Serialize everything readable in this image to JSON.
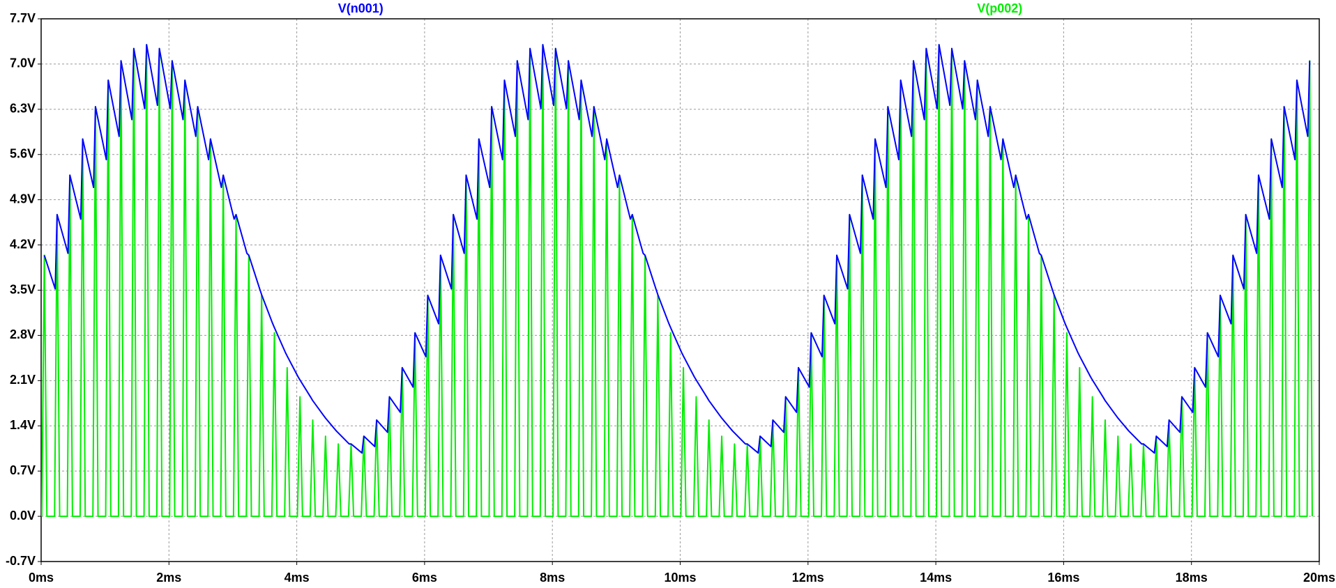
{
  "chart_data": {
    "type": "line",
    "xlim": [
      0,
      20
    ],
    "ylim": [
      -0.7,
      7.7
    ],
    "grid": true,
    "xticks": [
      {
        "value": 0,
        "label": "0ms"
      },
      {
        "value": 2,
        "label": "2ms"
      },
      {
        "value": 4,
        "label": "4ms"
      },
      {
        "value": 6,
        "label": "6ms"
      },
      {
        "value": 8,
        "label": "8ms"
      },
      {
        "value": 10,
        "label": "10ms"
      },
      {
        "value": 12,
        "label": "12ms"
      },
      {
        "value": 14,
        "label": "14ms"
      },
      {
        "value": 16,
        "label": "16ms"
      },
      {
        "value": 18,
        "label": "18ms"
      },
      {
        "value": 20,
        "label": "20ms"
      }
    ],
    "yticks": [
      {
        "value": -0.7,
        "label": "-0.7V"
      },
      {
        "value": 0,
        "label": "0.0V"
      },
      {
        "value": 0.7,
        "label": "0.7V"
      },
      {
        "value": 1.4,
        "label": "1.4V"
      },
      {
        "value": 2.1,
        "label": "2.1V"
      },
      {
        "value": 2.8,
        "label": "2.8V"
      },
      {
        "value": 3.5,
        "label": "3.5V"
      },
      {
        "value": 4.2,
        "label": "4.2V"
      },
      {
        "value": 4.9,
        "label": "4.9V"
      },
      {
        "value": 5.6,
        "label": "5.6V"
      },
      {
        "value": 6.3,
        "label": "6.3V"
      },
      {
        "value": 7,
        "label": "7.0V"
      },
      {
        "value": 7.7,
        "label": "7.7V"
      }
    ],
    "series": [
      {
        "name": "V(n001)",
        "color": "#0000ff",
        "x": [
          0.05,
          0.22,
          0.25,
          0.42,
          0.45,
          0.62,
          0.65,
          0.82,
          0.85,
          1.02,
          1.05,
          1.22,
          1.25,
          1.42,
          1.45,
          1.62,
          1.65,
          1.82,
          1.85,
          2.02,
          2.05,
          2.22,
          2.25,
          2.42,
          2.45,
          2.62,
          2.65,
          2.82,
          2.85,
          3.02,
          3.05,
          3.22,
          3.25,
          3.42,
          3.45,
          3.62,
          3.65,
          3.82,
          3.85,
          4.02,
          4.05,
          4.22,
          4.25,
          4.42,
          4.45,
          4.62,
          4.65,
          4.82,
          4.85,
          5.02,
          5.05,
          5.22,
          5.25,
          5.42,
          5.45,
          5.62,
          5.65,
          5.82,
          5.85,
          6.02,
          6.05,
          6.22,
          6.25,
          6.42,
          6.45,
          6.62,
          6.65,
          6.82,
          6.85,
          7.02,
          7.05,
          7.22,
          7.25,
          7.42,
          7.45,
          7.62,
          7.65,
          7.82,
          7.85,
          8.02,
          8.05,
          8.22,
          8.25,
          8.42,
          8.45,
          8.62,
          8.65,
          8.82,
          8.85,
          9.02,
          9.05,
          9.22,
          9.25,
          9.42,
          9.45,
          9.62,
          9.65,
          9.82,
          9.85,
          10.02,
          10.05,
          10.22,
          10.25,
          10.42,
          10.45,
          10.62,
          10.65,
          10.82,
          10.85,
          11.02,
          11.05,
          11.22,
          11.25,
          11.42,
          11.45,
          11.62,
          11.65,
          11.82,
          11.85,
          12.02,
          12.05,
          12.22,
          12.25,
          12.42,
          12.45,
          12.62,
          12.65,
          12.82,
          12.85,
          13.02,
          13.05,
          13.22,
          13.25,
          13.42,
          13.45,
          13.62,
          13.65,
          13.82,
          13.85,
          14.02,
          14.05,
          14.22,
          14.25,
          14.42,
          14.45,
          14.62,
          14.65,
          14.82,
          14.85,
          15.02,
          15.05,
          15.22,
          15.25,
          15.42,
          15.45,
          15.62,
          15.65,
          15.82,
          15.85,
          16.02,
          16.05,
          16.22,
          16.25,
          16.42,
          16.45,
          16.62,
          16.65,
          16.82,
          16.85,
          17.02,
          17.05,
          17.22,
          17.25,
          17.42,
          17.45,
          17.62,
          17.65,
          17.82,
          17.85,
          18.02,
          18.05,
          18.22,
          18.25,
          18.42,
          18.45,
          18.62,
          18.65,
          18.82,
          18.85,
          19.02,
          19.05,
          19.22,
          19.25,
          19.42,
          19.45,
          19.62,
          19.65,
          19.82,
          19.85
        ],
        "values": [
          4.04,
          3.52,
          4.67,
          4.07,
          5.28,
          4.6,
          5.84,
          5.09,
          6.34,
          5.52,
          6.75,
          5.88,
          7.05,
          6.14,
          7.24,
          6.31,
          7.3,
          6.36,
          7.24,
          6.31,
          7.05,
          6.14,
          6.75,
          5.88,
          6.34,
          5.52,
          5.84,
          5.09,
          5.28,
          4.6,
          4.67,
          4.07,
          4.04,
          3.52,
          3.43,
          2.99,
          2.92,
          2.54,
          2.48,
          2.16,
          2.11,
          1.84,
          1.79,
          1.56,
          1.52,
          1.32,
          1.29,
          1.12,
          1.12,
          0.98,
          1.24,
          1.08,
          1.49,
          1.3,
          1.85,
          1.61,
          2.3,
          2,
          2.84,
          2.47,
          3.42,
          2.98,
          4.04,
          3.52,
          4.67,
          4.07,
          5.28,
          4.6,
          5.84,
          5.09,
          6.34,
          5.52,
          6.75,
          5.88,
          7.05,
          6.14,
          7.24,
          6.31,
          7.3,
          6.36,
          7.24,
          6.31,
          7.05,
          6.14,
          6.75,
          5.88,
          6.34,
          5.52,
          5.84,
          5.09,
          5.28,
          4.6,
          4.67,
          4.07,
          4.04,
          3.52,
          3.43,
          2.99,
          2.92,
          2.54,
          2.48,
          2.16,
          2.11,
          1.84,
          1.79,
          1.56,
          1.52,
          1.32,
          1.29,
          1.12,
          1.12,
          0.98,
          1.24,
          1.08,
          1.49,
          1.3,
          1.85,
          1.61,
          2.3,
          2,
          2.84,
          2.47,
          3.42,
          2.98,
          4.04,
          3.52,
          4.67,
          4.07,
          5.28,
          4.6,
          5.84,
          5.09,
          6.34,
          5.52,
          6.75,
          5.88,
          7.05,
          6.14,
          7.24,
          6.31,
          7.3,
          6.36,
          7.24,
          6.31,
          7.05,
          6.14,
          6.75,
          5.88,
          6.34,
          5.52,
          5.84,
          5.09,
          5.28,
          4.6,
          4.67,
          4.07,
          4.04,
          3.52,
          3.43,
          2.99,
          2.92,
          2.54,
          2.48,
          2.16,
          2.11,
          1.84,
          1.79,
          1.56,
          1.52,
          1.32,
          1.29,
          1.12,
          1.12,
          0.98,
          1.24,
          1.08,
          1.49,
          1.3,
          1.85,
          1.61,
          2.3,
          2,
          2.84,
          2.47,
          3.42,
          2.98,
          4.04,
          3.52,
          4.67,
          4.07,
          5.28,
          4.6,
          5.84,
          5.09,
          6.34,
          5.52,
          6.75,
          5.88,
          7.05
        ]
      },
      {
        "name": "V(p002)",
        "color": "#00ee00",
        "x": [
          0.01,
          0.05,
          0.09,
          0.21,
          0.25,
          0.29,
          0.41,
          0.45,
          0.49,
          0.61,
          0.65,
          0.69,
          0.81,
          0.85,
          0.89,
          1.01,
          1.05,
          1.09,
          1.21,
          1.25,
          1.29,
          1.41,
          1.45,
          1.49,
          1.61,
          1.65,
          1.69,
          1.81,
          1.85,
          1.89,
          2.01,
          2.05,
          2.09,
          2.21,
          2.25,
          2.29,
          2.41,
          2.45,
          2.49,
          2.61,
          2.65,
          2.69,
          2.81,
          2.85,
          2.89,
          3.01,
          3.05,
          3.09,
          3.21,
          3.25,
          3.29,
          3.41,
          3.45,
          3.49,
          3.61,
          3.65,
          3.69,
          3.81,
          3.85,
          3.89,
          4.01,
          4.05,
          4.09,
          4.21,
          4.25,
          4.29,
          4.41,
          4.45,
          4.49,
          4.61,
          4.65,
          4.69,
          4.81,
          4.85,
          4.89,
          5.01,
          5.05,
          5.09,
          5.21,
          5.25,
          5.29,
          5.41,
          5.45,
          5.49,
          5.61,
          5.65,
          5.69,
          5.81,
          5.85,
          5.89,
          6.01,
          6.05,
          6.09,
          6.21,
          6.25,
          6.29,
          6.41,
          6.45,
          6.49,
          6.61,
          6.65,
          6.69,
          6.81,
          6.85,
          6.89,
          7.01,
          7.05,
          7.09,
          7.21,
          7.25,
          7.29,
          7.41,
          7.45,
          7.49,
          7.61,
          7.65,
          7.69,
          7.81,
          7.85,
          7.89,
          8.01,
          8.05,
          8.09,
          8.21,
          8.25,
          8.29,
          8.41,
          8.45,
          8.49,
          8.61,
          8.65,
          8.69,
          8.81,
          8.85,
          8.89,
          9.01,
          9.05,
          9.09,
          9.21,
          9.25,
          9.29,
          9.41,
          9.45,
          9.49,
          9.61,
          9.65,
          9.69,
          9.81,
          9.85,
          9.89,
          10.01,
          10.05,
          10.09,
          10.21,
          10.25,
          10.29,
          10.41,
          10.45,
          10.49,
          10.61,
          10.65,
          10.69,
          10.81,
          10.85,
          10.89,
          11.01,
          11.05,
          11.09,
          11.21,
          11.25,
          11.29,
          11.41,
          11.45,
          11.49,
          11.61,
          11.65,
          11.69,
          11.81,
          11.85,
          11.89,
          12.01,
          12.05,
          12.09,
          12.21,
          12.25,
          12.29,
          12.41,
          12.45,
          12.49,
          12.61,
          12.65,
          12.69,
          12.81,
          12.85,
          12.89,
          13.01,
          13.05,
          13.09,
          13.21,
          13.25,
          13.29,
          13.41,
          13.45,
          13.49,
          13.61,
          13.65,
          13.69,
          13.81,
          13.85,
          13.89,
          14.01,
          14.05,
          14.09,
          14.21,
          14.25,
          14.29,
          14.41,
          14.45,
          14.49,
          14.61,
          14.65,
          14.69,
          14.81,
          14.85,
          14.89,
          15.01,
          15.05,
          15.09,
          15.21,
          15.25,
          15.29,
          15.41,
          15.45,
          15.49,
          15.61,
          15.65,
          15.69,
          15.81,
          15.85,
          15.89,
          16.01,
          16.05,
          16.09,
          16.21,
          16.25,
          16.29,
          16.41,
          16.45,
          16.49,
          16.61,
          16.65,
          16.69,
          16.81,
          16.85,
          16.89,
          17.01,
          17.05,
          17.09,
          17.21,
          17.25,
          17.29,
          17.41,
          17.45,
          17.49,
          17.61,
          17.65,
          17.69,
          17.81,
          17.85,
          17.89,
          18.01,
          18.05,
          18.09,
          18.21,
          18.25,
          18.29,
          18.41,
          18.45,
          18.49,
          18.61,
          18.65,
          18.69,
          18.81,
          18.85,
          18.89,
          19.01,
          19.05,
          19.09,
          19.21,
          19.25,
          19.29,
          19.41,
          19.45,
          19.49,
          19.61,
          19.65,
          19.69,
          19.81,
          19.85,
          19.89
        ],
        "values": [
          0,
          4.04,
          0,
          0,
          4.67,
          0,
          0,
          5.28,
          0,
          0,
          5.84,
          0,
          0,
          6.34,
          0,
          0,
          6.75,
          0,
          0,
          7.05,
          0,
          0,
          7.24,
          0,
          0,
          7.3,
          0,
          0,
          7.24,
          0,
          0,
          7.05,
          0,
          0,
          6.75,
          0,
          0,
          6.34,
          0,
          0,
          5.84,
          0,
          0,
          5.28,
          0,
          0,
          4.67,
          0,
          0,
          4.04,
          0,
          0,
          3.42,
          0,
          0,
          2.84,
          0,
          0,
          2.3,
          0,
          0,
          1.85,
          0,
          0,
          1.49,
          0,
          0,
          1.24,
          0,
          0,
          1.12,
          0,
          0,
          1.12,
          0,
          0,
          1.24,
          0,
          0,
          1.49,
          0,
          0,
          1.85,
          0,
          0,
          2.3,
          0,
          0,
          2.84,
          0,
          0,
          3.42,
          0,
          0,
          4.04,
          0,
          0,
          4.67,
          0,
          0,
          5.28,
          0,
          0,
          5.84,
          0,
          0,
          6.34,
          0,
          0,
          6.75,
          0,
          0,
          7.05,
          0,
          0,
          7.24,
          0,
          0,
          7.3,
          0,
          0,
          7.24,
          0,
          0,
          7.05,
          0,
          0,
          6.75,
          0,
          0,
          6.34,
          0,
          0,
          5.84,
          0,
          0,
          5.28,
          0,
          0,
          4.67,
          0,
          0,
          4.04,
          0,
          0,
          3.42,
          0,
          0,
          2.84,
          0,
          0,
          2.3,
          0,
          0,
          1.85,
          0,
          0,
          1.49,
          0,
          0,
          1.24,
          0,
          0,
          1.12,
          0,
          0,
          1.12,
          0,
          0,
          1.24,
          0,
          0,
          1.49,
          0,
          0,
          1.85,
          0,
          0,
          2.3,
          0,
          0,
          2.84,
          0,
          0,
          3.42,
          0,
          0,
          4.04,
          0,
          0,
          4.67,
          0,
          0,
          5.28,
          0,
          0,
          5.84,
          0,
          0,
          6.34,
          0,
          0,
          6.75,
          0,
          0,
          7.05,
          0,
          0,
          7.24,
          0,
          0,
          7.3,
          0,
          0,
          7.24,
          0,
          0,
          7.05,
          0,
          0,
          6.75,
          0,
          0,
          6.34,
          0,
          0,
          5.84,
          0,
          0,
          5.28,
          0,
          0,
          4.67,
          0,
          0,
          4.04,
          0,
          0,
          3.42,
          0,
          0,
          2.84,
          0,
          0,
          2.3,
          0,
          0,
          1.85,
          0,
          0,
          1.49,
          0,
          0,
          1.24,
          0,
          0,
          1.12,
          0,
          0,
          1.12,
          0,
          0,
          1.24,
          0,
          0,
          1.49,
          0,
          0,
          1.85,
          0,
          0,
          2.3,
          0,
          0,
          2.84,
          0,
          0,
          3.42,
          0,
          0,
          4.04,
          0,
          0,
          4.67,
          0,
          0,
          5.28,
          0,
          0,
          5.84,
          0,
          0,
          6.34,
          0,
          0,
          6.75,
          0,
          0,
          7.05,
          0
        ]
      }
    ]
  }
}
